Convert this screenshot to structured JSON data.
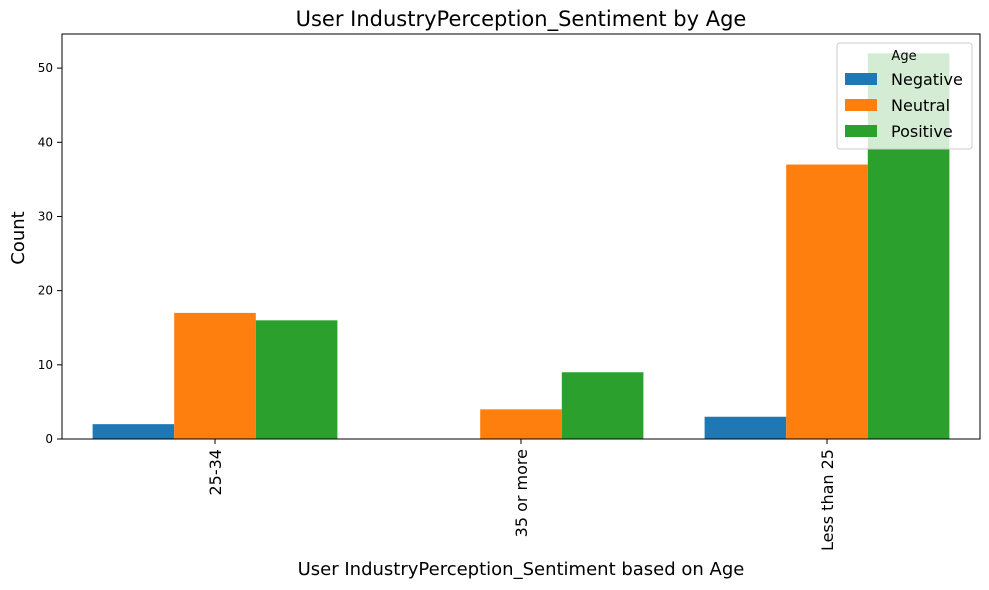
{
  "chart_data": {
    "type": "bar",
    "title": "User IndustryPerception_Sentiment by Age",
    "xlabel": "User IndustryPerception_Sentiment based on Age",
    "ylabel": "Count",
    "categories": [
      "25-34",
      "35 or more",
      "Less than 25"
    ],
    "series": [
      {
        "name": "Negative",
        "color": "#1f77b4",
        "values": [
          2,
          0,
          3
        ]
      },
      {
        "name": "Neutral",
        "color": "#ff7f0e",
        "values": [
          17,
          4,
          37
        ]
      },
      {
        "name": "Positive",
        "color": "#2ca02c",
        "values": [
          16,
          9,
          52
        ]
      }
    ],
    "ylim": [
      0,
      54.6
    ],
    "yticks": [
      0,
      10,
      20,
      30,
      40,
      50
    ],
    "legend": {
      "title": "Age",
      "position": "top-right"
    },
    "grid": false
  }
}
